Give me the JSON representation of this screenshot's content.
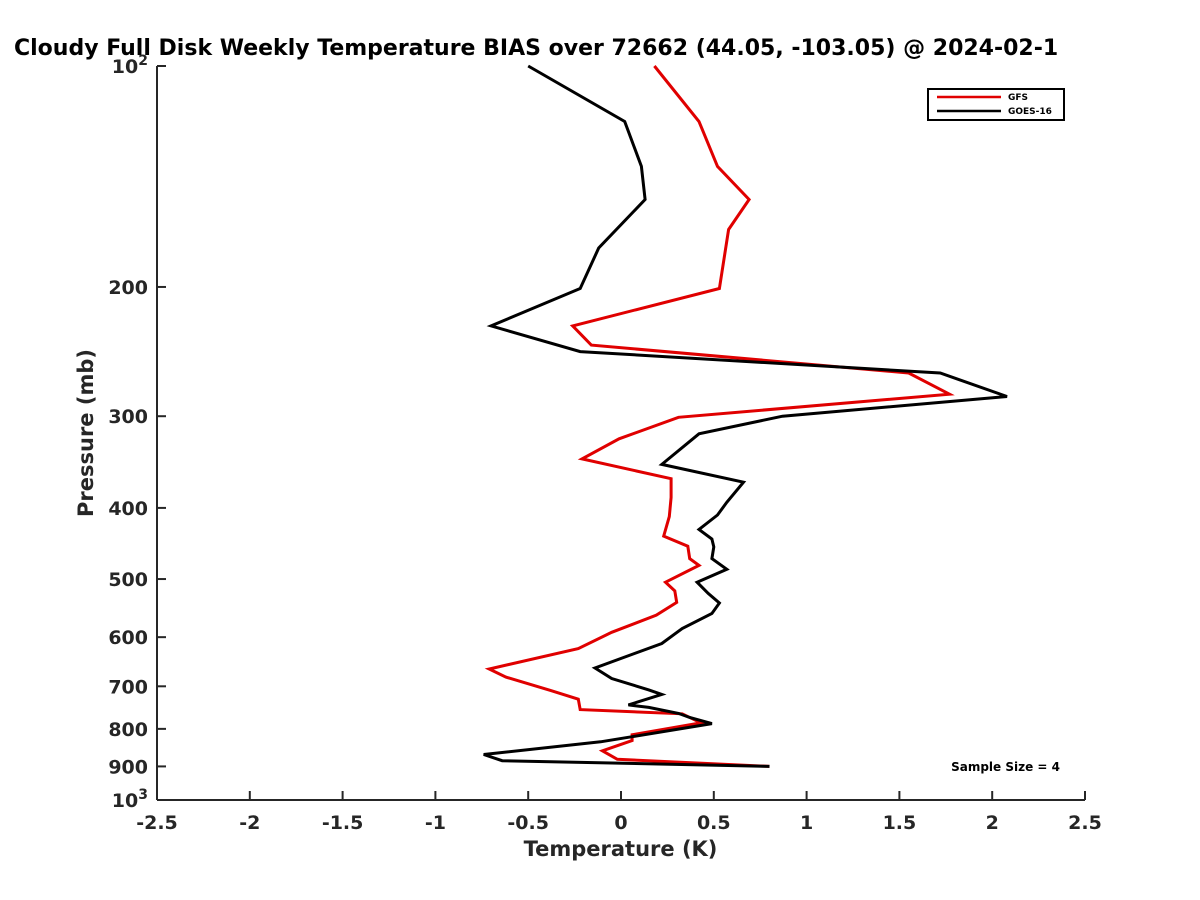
{
  "chart_data": {
    "type": "line",
    "title": "Cloudy Full Disk Weekly Temperature BIAS over 72662 (44.05, -103.05) @ 2024-02-1",
    "xlabel": "Temperature (K)",
    "ylabel": "Pressure (mb)",
    "xlim": [
      -2.5,
      2.5
    ],
    "ylim": [
      100,
      1000
    ],
    "y_scale": "log",
    "y_reversed": true,
    "x_ticks": [
      "-2.5",
      "-2",
      "-1.5",
      "-1",
      "-0.5",
      "0",
      "0.5",
      "1",
      "1.5",
      "2",
      "2.5"
    ],
    "y_ticks": [
      {
        "value": 100,
        "base": "10",
        "exp": "2"
      },
      {
        "value": 200,
        "label": "200"
      },
      {
        "value": 300,
        "label": "300"
      },
      {
        "value": 400,
        "label": "400"
      },
      {
        "value": 500,
        "label": "500"
      },
      {
        "value": 600,
        "label": "600"
      },
      {
        "value": 700,
        "label": "700"
      },
      {
        "value": 800,
        "label": "800"
      },
      {
        "value": 900,
        "label": "900"
      },
      {
        "value": 1000,
        "base": "10",
        "exp": "3"
      }
    ],
    "grid": false,
    "legend_position": "top-right",
    "series": [
      {
        "name": "GFS",
        "color": "#e00000",
        "points": [
          [
            0.18,
            100
          ],
          [
            0.42,
            119
          ],
          [
            0.52,
            137
          ],
          [
            0.69,
            152
          ],
          [
            0.58,
            167
          ],
          [
            0.53,
            201
          ],
          [
            -0.26,
            226
          ],
          [
            -0.16,
            240
          ],
          [
            1.55,
            262
          ],
          [
            1.77,
            280
          ],
          [
            0.31,
            301
          ],
          [
            -0.01,
            322
          ],
          [
            -0.21,
            343
          ],
          [
            0.27,
            365
          ],
          [
            0.27,
            387
          ],
          [
            0.26,
            411
          ],
          [
            0.23,
            437
          ],
          [
            0.36,
            451
          ],
          [
            0.37,
            469
          ],
          [
            0.42,
            479
          ],
          [
            0.24,
            505
          ],
          [
            0.29,
            519
          ],
          [
            0.3,
            538
          ],
          [
            0.19,
            560
          ],
          [
            -0.05,
            591
          ],
          [
            -0.23,
            622
          ],
          [
            -0.71,
            663
          ],
          [
            -0.62,
            680
          ],
          [
            -0.38,
            709
          ],
          [
            -0.23,
            729
          ],
          [
            -0.22,
            753
          ],
          [
            0.33,
            763
          ],
          [
            0.43,
            785
          ],
          [
            0.06,
            815
          ],
          [
            0.06,
            830
          ],
          [
            -0.1,
            857
          ],
          [
            -0.02,
            880
          ],
          [
            0.8,
            900
          ]
        ]
      },
      {
        "name": "GOES-16",
        "color": "#000000",
        "points": [
          [
            -0.5,
            100
          ],
          [
            0.02,
            119
          ],
          [
            0.11,
            137
          ],
          [
            0.13,
            152
          ],
          [
            -0.12,
            177
          ],
          [
            -0.22,
            201
          ],
          [
            -0.7,
            226
          ],
          [
            -0.22,
            245
          ],
          [
            1.72,
            262
          ],
          [
            2.08,
            282
          ],
          [
            0.87,
            300
          ],
          [
            0.42,
            317
          ],
          [
            0.22,
            349
          ],
          [
            0.66,
            369
          ],
          [
            0.57,
            393
          ],
          [
            0.52,
            409
          ],
          [
            0.42,
            428
          ],
          [
            0.49,
            441
          ],
          [
            0.5,
            452
          ],
          [
            0.49,
            469
          ],
          [
            0.57,
            485
          ],
          [
            0.41,
            505
          ],
          [
            0.47,
            523
          ],
          [
            0.53,
            539
          ],
          [
            0.49,
            557
          ],
          [
            0.33,
            584
          ],
          [
            0.22,
            612
          ],
          [
            -0.14,
            661
          ],
          [
            -0.05,
            683
          ],
          [
            0.15,
            708
          ],
          [
            0.22,
            718
          ],
          [
            0.04,
            742
          ],
          [
            0.15,
            748
          ],
          [
            0.31,
            762
          ],
          [
            0.37,
            772
          ],
          [
            0.49,
            787
          ],
          [
            0.06,
            820
          ],
          [
            -0.11,
            833
          ],
          [
            -0.74,
            867
          ],
          [
            -0.64,
            884
          ],
          [
            0.8,
            900
          ]
        ]
      }
    ],
    "annotation": "Sample Size = 4"
  }
}
